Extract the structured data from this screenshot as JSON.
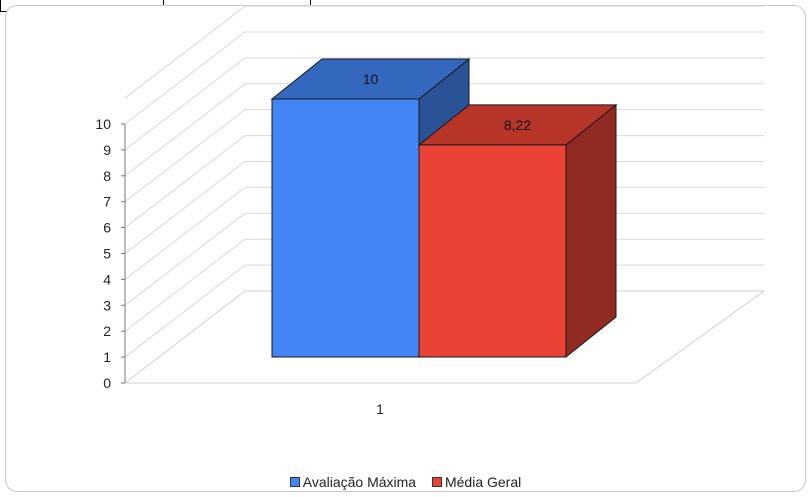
{
  "chart_data": {
    "type": "bar",
    "categories": [
      "1"
    ],
    "series": [
      {
        "name": "Avaliação Máxima",
        "values": [
          10
        ],
        "color": "#4285f4",
        "label": "10"
      },
      {
        "name": "Média Geral",
        "values": [
          8.22
        ],
        "color": "#ea4335",
        "label": "8,22"
      }
    ],
    "ylim": [
      0,
      10
    ],
    "yticks": [
      "0",
      "1",
      "2",
      "3",
      "4",
      "5",
      "6",
      "7",
      "8",
      "9",
      "10"
    ],
    "grid": true,
    "style": "3d",
    "legend_position": "bottom"
  }
}
